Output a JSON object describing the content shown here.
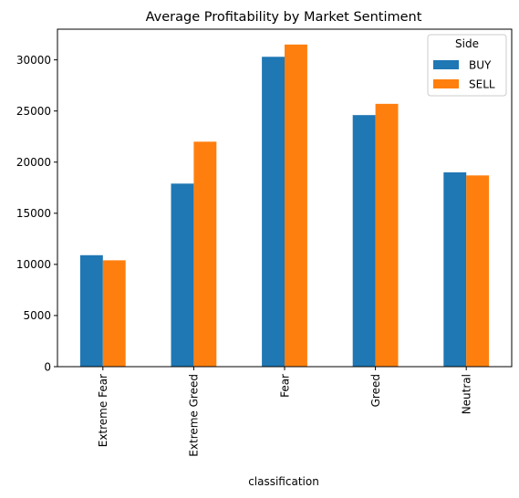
{
  "chart_data": {
    "type": "bar",
    "title": "Average Profitability by Market Sentiment",
    "xlabel": "classification",
    "ylabel": "",
    "categories": [
      "Extreme Fear",
      "Extreme Greed",
      "Fear",
      "Greed",
      "Neutral"
    ],
    "series": [
      {
        "name": "BUY",
        "values": [
          10900,
          17900,
          30300,
          24600,
          19000
        ],
        "color": "#1f77b4"
      },
      {
        "name": "SELL",
        "values": [
          10400,
          22000,
          31500,
          25700,
          18700
        ],
        "color": "#ff7f0e"
      }
    ],
    "ylim": [
      0,
      33000
    ],
    "yticks": [
      0,
      5000,
      10000,
      15000,
      20000,
      25000,
      30000
    ],
    "legend": {
      "title": "Side",
      "placement": "top-right"
    },
    "grid": false
  }
}
